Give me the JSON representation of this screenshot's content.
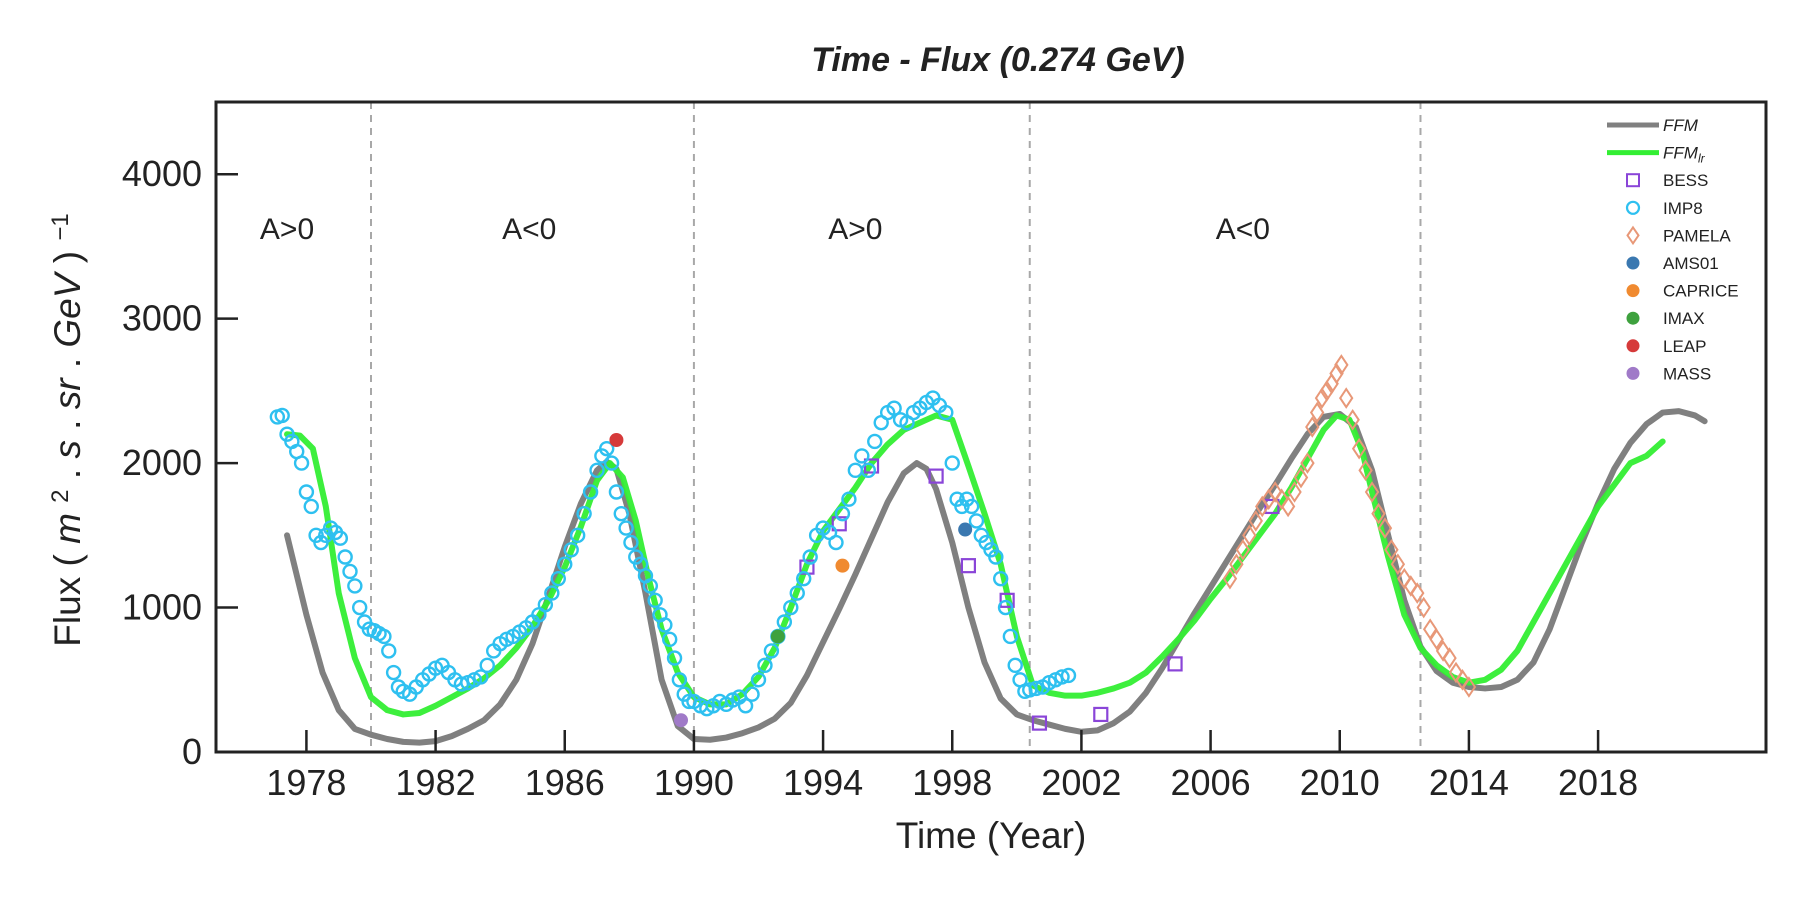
{
  "chart_data": {
    "type": "scatter",
    "title": "Time - Flux (0.274 GeV)",
    "xlabel": "Time (Year)",
    "ylabel_prefix": "Flux (",
    "ylabel_math": "m",
    "xlim": [
      1975.2,
      2023.2
    ],
    "ylim": [
      0,
      4500
    ],
    "x_ticks": [
      1978,
      1982,
      1986,
      1990,
      1994,
      1998,
      2002,
      2006,
      2010,
      2014,
      2018
    ],
    "y_ticks": [
      0,
      1000,
      2000,
      3000,
      4000
    ],
    "grid": false,
    "legend_position": "top-right",
    "polarity_boundaries": [
      1980.0,
      1990.0,
      2000.4,
      2012.5
    ],
    "polarity_labels": [
      {
        "text": "A>0",
        "x": 1977.4,
        "y": 3550
      },
      {
        "text": "A<0",
        "x": 1984.9,
        "y": 3550
      },
      {
        "text": "A>0",
        "x": 1995.0,
        "y": 3550
      },
      {
        "text": "A<0",
        "x": 2007.0,
        "y": 3550
      }
    ],
    "series": [
      {
        "name": "FFM",
        "kind": "line",
        "color": "#808080",
        "x": [
          1977.4,
          1978.0,
          1978.5,
          1979.0,
          1979.5,
          1980.0,
          1980.5,
          1981.0,
          1981.5,
          1982.0,
          1982.5,
          1983.0,
          1983.5,
          1984.0,
          1984.5,
          1985.0,
          1985.5,
          1986.0,
          1986.5,
          1987.0,
          1987.3,
          1987.6,
          1988.0,
          1988.5,
          1989.0,
          1989.5,
          1990.0,
          1990.5,
          1991.0,
          1991.5,
          1992.0,
          1992.5,
          1993.0,
          1993.5,
          1994.0,
          1994.5,
          1995.0,
          1995.5,
          1996.0,
          1996.5,
          1996.9,
          1997.2,
          1997.5,
          1998.0,
          1998.5,
          1999.0,
          1999.5,
          2000.0,
          2000.5,
          2001.0,
          2001.5,
          2002.0,
          2002.5,
          2003.0,
          2003.5,
          2004.0,
          2004.5,
          2005.0,
          2005.5,
          2006.0,
          2006.5,
          2007.0,
          2007.5,
          2008.0,
          2008.5,
          2009.0,
          2009.5,
          2010.0,
          2010.5,
          2011.0,
          2011.5,
          2012.0,
          2012.5,
          2013.0,
          2013.5,
          2014.0,
          2014.5,
          2015.0,
          2015.5,
          2016.0,
          2016.5,
          2017.0,
          2017.5,
          2018.0,
          2018.5,
          2019.0,
          2019.5,
          2020.0,
          2020.5,
          2021.0,
          2021.3
        ],
        "y": [
          1500,
          950,
          550,
          290,
          160,
          120,
          90,
          70,
          65,
          75,
          110,
          160,
          220,
          330,
          500,
          750,
          1080,
          1420,
          1720,
          1950,
          2010,
          1960,
          1650,
          1100,
          500,
          180,
          90,
          85,
          100,
          130,
          170,
          230,
          340,
          530,
          760,
          990,
          1230,
          1480,
          1730,
          1930,
          2000,
          1960,
          1820,
          1450,
          1000,
          620,
          370,
          260,
          220,
          190,
          160,
          140,
          150,
          200,
          280,
          410,
          580,
          770,
          960,
          1140,
          1320,
          1500,
          1680,
          1850,
          2030,
          2200,
          2320,
          2340,
          2250,
          1950,
          1500,
          1050,
          730,
          560,
          480,
          450,
          440,
          450,
          500,
          620,
          850,
          1150,
          1450,
          1720,
          1960,
          2140,
          2270,
          2350,
          2360,
          2330,
          2290
        ]
      },
      {
        "name": "FFM_lr",
        "kind": "line",
        "color": "#33ee33",
        "x": [
          1977.4,
          1977.8,
          1978.2,
          1978.6,
          1979.0,
          1979.5,
          1980.0,
          1980.5,
          1981.0,
          1981.5,
          1982.0,
          1982.5,
          1983.0,
          1983.5,
          1984.0,
          1984.5,
          1985.0,
          1985.5,
          1986.0,
          1986.5,
          1987.0,
          1987.4,
          1987.8,
          1988.2,
          1988.6,
          1989.0,
          1989.5,
          1990.0,
          1990.5,
          1991.0,
          1991.5,
          1992.0,
          1992.5,
          1993.0,
          1993.5,
          1994.0,
          1994.5,
          1995.0,
          1995.5,
          1996.0,
          1996.5,
          1997.0,
          1997.5,
          1998.0,
          1998.5,
          1999.0,
          1999.5,
          2000.0,
          2000.5,
          2001.0,
          2001.5,
          2002.0,
          2002.5,
          2003.0,
          2003.5,
          2004.0,
          2004.5,
          2005.0,
          2005.5,
          2006.0,
          2006.5,
          2007.0,
          2007.5,
          2008.0,
          2008.5,
          2009.0,
          2009.5,
          2009.9,
          2010.3,
          2010.7,
          2011.0,
          2011.5,
          2012.0,
          2012.5,
          2013.0,
          2013.5,
          2014.0,
          2014.5,
          2015.0,
          2015.5,
          2016.0,
          2016.5,
          2017.0,
          2017.5,
          2018.0,
          2018.5,
          2019.0,
          2019.5,
          2020.0
        ],
        "y": [
          2200,
          2190,
          2100,
          1700,
          1100,
          650,
          380,
          290,
          260,
          270,
          320,
          380,
          440,
          510,
          600,
          720,
          870,
          1050,
          1280,
          1560,
          1880,
          2000,
          1900,
          1600,
          1200,
          850,
          550,
          380,
          330,
          330,
          400,
          520,
          720,
          1000,
          1300,
          1530,
          1680,
          1830,
          2000,
          2130,
          2230,
          2280,
          2330,
          2300,
          1980,
          1650,
          1300,
          800,
          460,
          410,
          390,
          390,
          410,
          440,
          480,
          550,
          660,
          780,
          910,
          1060,
          1200,
          1350,
          1500,
          1650,
          1830,
          2030,
          2230,
          2330,
          2300,
          2080,
          1800,
          1350,
          950,
          720,
          600,
          520,
          480,
          500,
          570,
          700,
          900,
          1100,
          1300,
          1500,
          1700,
          1850,
          2000,
          2050,
          2150
        ]
      },
      {
        "name": "BESS",
        "kind": "marker",
        "marker": "square-open",
        "color": "#8a45d8",
        "x": [
          1993.5,
          1994.5,
          1995.5,
          1997.5,
          1998.5,
          1999.7,
          2000.7,
          2002.6,
          2004.9,
          2007.9
        ],
        "y": [
          1280,
          1580,
          1980,
          1910,
          1290,
          1050,
          200,
          260,
          610,
          1700
        ]
      },
      {
        "name": "IMP8",
        "kind": "marker",
        "marker": "circle-open",
        "color": "#2ec0f0",
        "x": [
          1977.1,
          1977.25,
          1977.4,
          1977.55,
          1977.7,
          1977.85,
          1978.0,
          1978.15,
          1978.3,
          1978.45,
          1978.6,
          1978.75,
          1978.9,
          1979.05,
          1979.2,
          1979.35,
          1979.5,
          1979.65,
          1979.8,
          1979.95,
          1980.1,
          1980.25,
          1980.4,
          1980.55,
          1980.7,
          1980.85,
          1981.0,
          1981.2,
          1981.4,
          1981.6,
          1981.8,
          1982.0,
          1982.2,
          1982.4,
          1982.6,
          1982.8,
          1983.0,
          1983.2,
          1983.4,
          1983.6,
          1983.8,
          1984.0,
          1984.2,
          1984.4,
          1984.6,
          1984.8,
          1985.0,
          1985.2,
          1985.4,
          1985.6,
          1985.8,
          1986.0,
          1986.2,
          1986.4,
          1986.6,
          1986.8,
          1987.0,
          1987.15,
          1987.3,
          1987.45,
          1987.6,
          1987.75,
          1987.9,
          1988.05,
          1988.2,
          1988.35,
          1988.5,
          1988.65,
          1988.8,
          1988.95,
          1989.1,
          1989.25,
          1989.4,
          1989.55,
          1989.7,
          1989.85,
          1990.0,
          1990.2,
          1990.4,
          1990.6,
          1990.8,
          1991.0,
          1991.2,
          1991.4,
          1991.6,
          1991.8,
          1992.0,
          1992.2,
          1992.4,
          1992.6,
          1992.8,
          1993.0,
          1993.2,
          1993.4,
          1993.6,
          1993.8,
          1994.0,
          1994.2,
          1994.4,
          1994.6,
          1994.8,
          1995.0,
          1995.2,
          1995.4,
          1995.6,
          1995.8,
          1996.0,
          1996.2,
          1996.4,
          1996.6,
          1996.8,
          1997.0,
          1997.2,
          1997.4,
          1997.6,
          1997.8,
          1998.0,
          1998.15,
          1998.3,
          1998.45,
          1998.6,
          1998.75,
          1998.9,
          1999.05,
          1999.2,
          1999.35,
          1999.5,
          1999.65,
          1999.8,
          1999.95,
          2000.1,
          2000.25,
          2000.4,
          2000.6,
          2000.8,
          2001.0,
          2001.2,
          2001.4,
          2001.6
        ],
        "y": [
          2320,
          2330,
          2200,
          2150,
          2080,
          2000,
          1800,
          1700,
          1500,
          1450,
          1500,
          1550,
          1520,
          1480,
          1350,
          1250,
          1150,
          1000,
          900,
          850,
          840,
          820,
          800,
          700,
          550,
          450,
          420,
          400,
          450,
          500,
          540,
          580,
          600,
          550,
          500,
          470,
          480,
          500,
          520,
          600,
          700,
          750,
          780,
          800,
          830,
          860,
          900,
          950,
          1020,
          1100,
          1200,
          1300,
          1400,
          1500,
          1650,
          1800,
          1950,
          2050,
          2100,
          2000,
          1800,
          1650,
          1550,
          1450,
          1350,
          1300,
          1220,
          1150,
          1050,
          950,
          880,
          780,
          650,
          500,
          400,
          350,
          350,
          320,
          300,
          320,
          350,
          330,
          360,
          380,
          320,
          400,
          500,
          600,
          700,
          800,
          900,
          1000,
          1100,
          1200,
          1350,
          1500,
          1550,
          1520,
          1450,
          1650,
          1750,
          1950,
          2050,
          1950,
          2150,
          2280,
          2350,
          2380,
          2300,
          2280,
          2350,
          2380,
          2420,
          2450,
          2400,
          2350,
          2000,
          1750,
          1700,
          1750,
          1700,
          1600,
          1500,
          1450,
          1400,
          1350,
          1200,
          1000,
          800,
          600,
          500,
          420,
          430,
          440,
          450,
          480,
          500,
          520,
          530
        ]
      },
      {
        "name": "PAMELA",
        "kind": "marker",
        "marker": "diamond-open",
        "color": "#e89878",
        "x": [
          2006.6,
          2006.8,
          2007.0,
          2007.2,
          2007.4,
          2007.6,
          2007.8,
          2008.0,
          2008.2,
          2008.4,
          2008.6,
          2008.8,
          2009.0,
          2009.15,
          2009.3,
          2009.45,
          2009.6,
          2009.75,
          2009.9,
          2010.05,
          2010.2,
          2010.4,
          2010.6,
          2010.8,
          2011.0,
          2011.2,
          2011.4,
          2011.6,
          2011.8,
          2012.0,
          2012.2,
          2012.4,
          2012.6,
          2012.8,
          2013.0,
          2013.2,
          2013.4,
          2013.6,
          2013.8,
          2014.0
        ],
        "y": [
          1200,
          1300,
          1400,
          1500,
          1600,
          1700,
          1750,
          1800,
          1750,
          1700,
          1800,
          1900,
          2000,
          2250,
          2350,
          2450,
          2500,
          2550,
          2620,
          2680,
          2450,
          2300,
          2100,
          1950,
          1800,
          1650,
          1550,
          1400,
          1300,
          1200,
          1150,
          1100,
          1000,
          850,
          780,
          700,
          650,
          550,
          500,
          450
        ]
      },
      {
        "name": "AMS01",
        "kind": "marker",
        "marker": "circle-filled",
        "color": "#3a78b0",
        "x": [
          1998.4
        ],
        "y": [
          1540
        ]
      },
      {
        "name": "CAPRICE",
        "kind": "marker",
        "marker": "circle-filled",
        "color": "#f08a30",
        "x": [
          1994.6
        ],
        "y": [
          1290
        ]
      },
      {
        "name": "IMAX",
        "kind": "marker",
        "marker": "circle-filled",
        "color": "#3ea13e",
        "x": [
          1992.6
        ],
        "y": [
          800
        ]
      },
      {
        "name": "LEAP",
        "kind": "marker",
        "marker": "circle-filled",
        "color": "#d63a3a",
        "x": [
          1987.6
        ],
        "y": [
          2160
        ]
      },
      {
        "name": "MASS",
        "kind": "marker",
        "marker": "circle-filled",
        "color": "#a07ac8",
        "x": [
          1989.6
        ],
        "y": [
          220
        ]
      }
    ]
  }
}
